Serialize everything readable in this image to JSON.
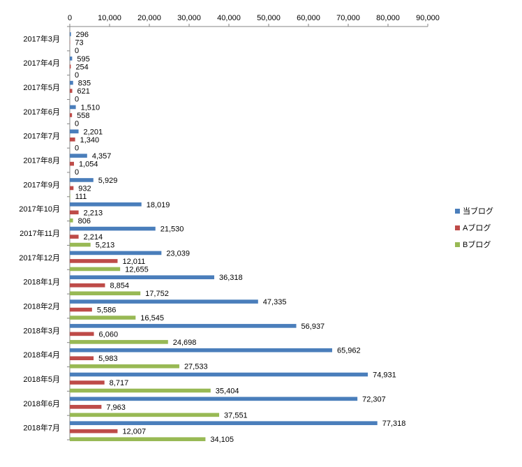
{
  "chart_data": {
    "type": "bar",
    "orientation": "horizontal",
    "categories": [
      "2017年3月",
      "2017年4月",
      "2017年5月",
      "2017年6月",
      "2017年7月",
      "2017年8月",
      "2017年9月",
      "2017年10月",
      "2017年11月",
      "2017年12月",
      "2018年1月",
      "2018年2月",
      "2018年3月",
      "2018年4月",
      "2018年5月",
      "2018年6月",
      "2018年7月"
    ],
    "series": [
      {
        "name": "当ブログ",
        "color": "#4a7ebb",
        "values": [
          296,
          595,
          835,
          1510,
          2201,
          4357,
          5929,
          18019,
          21530,
          23039,
          36318,
          47335,
          56937,
          65962,
          74931,
          72307,
          77318
        ]
      },
      {
        "name": "Aブログ",
        "color": "#be4b48",
        "values": [
          73,
          254,
          621,
          558,
          1340,
          1054,
          932,
          2213,
          2214,
          12011,
          8854,
          5586,
          6060,
          5983,
          8717,
          7963,
          12007
        ]
      },
      {
        "name": "Bブログ",
        "color": "#98b954",
        "values": [
          0,
          0,
          0,
          0,
          0,
          0,
          111,
          806,
          5213,
          12655,
          17752,
          16545,
          24698,
          27533,
          35404,
          37551,
          34105
        ]
      }
    ],
    "xlim": [
      0,
      90000
    ],
    "xticks": [
      0,
      10000,
      20000,
      30000,
      40000,
      50000,
      60000,
      70000,
      80000,
      90000
    ],
    "xtick_labels": [
      "0",
      "10,000",
      "20,000",
      "30,000",
      "40,000",
      "50,000",
      "60,000",
      "70,000",
      "80,000",
      "90,000"
    ],
    "axis_position": "top",
    "legend_position": "right",
    "data_labels": true,
    "grid": false
  }
}
